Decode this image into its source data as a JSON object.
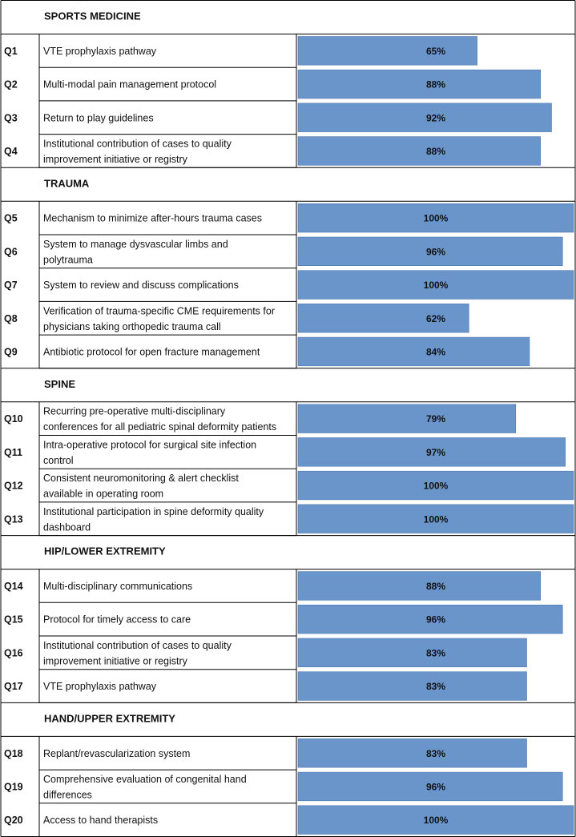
{
  "chart_data": {
    "type": "bar",
    "orientation": "horizontal",
    "xlim": [
      0,
      100
    ],
    "unit": "%",
    "colors": {
      "bar": "#6a95cb",
      "bar_border": "#4d77b0",
      "grid": "#000000"
    },
    "sections": [
      {
        "title": "SPORTS MEDICINE",
        "rows": [
          {
            "id": "Q1",
            "text": [
              "VTE prophylaxis pathway"
            ],
            "value": 65,
            "label": "65%"
          },
          {
            "id": "Q2",
            "text": [
              "Multi-modal pain management protocol"
            ],
            "value": 88,
            "label": "88%"
          },
          {
            "id": "Q3",
            "text": [
              "Return to play guidelines"
            ],
            "value": 92,
            "label": "92%"
          },
          {
            "id": "Q4",
            "text": [
              "Institutional contribution of cases to quality",
              "improvement initiative or registry"
            ],
            "value": 88,
            "label": "88%"
          }
        ]
      },
      {
        "title": "TRAUMA",
        "rows": [
          {
            "id": "Q5",
            "text": [
              "Mechanism to minimize after-hours trauma cases"
            ],
            "value": 100,
            "label": "100%"
          },
          {
            "id": "Q6",
            "text": [
              "System to manage dysvascular limbs and",
              "polytrauma"
            ],
            "value": 96,
            "label": "96%"
          },
          {
            "id": "Q7",
            "text": [
              "System to review and discuss complications"
            ],
            "value": 100,
            "label": "100%"
          },
          {
            "id": "Q8",
            "text": [
              "Verification of trauma-specific CME requirements for",
              "physicians taking orthopedic trauma call"
            ],
            "value": 62,
            "label": "62%"
          },
          {
            "id": "Q9",
            "text": [
              "Antibiotic protocol for open fracture management"
            ],
            "value": 84,
            "label": "84%"
          }
        ]
      },
      {
        "title": "SPINE",
        "rows": [
          {
            "id": "Q10",
            "text": [
              "Recurring pre-operative multi-disciplinary",
              "conferences for all pediatric spinal deformity patients"
            ],
            "value": 79,
            "label": "79%"
          },
          {
            "id": "Q11",
            "text": [
              "Intra-operative protocol for surgical site infection",
              "control"
            ],
            "value": 97,
            "label": "97%"
          },
          {
            "id": "Q12",
            "text": [
              "Consistent neuromonitoring & alert checklist",
              "available in operating room"
            ],
            "value": 100,
            "label": "100%"
          },
          {
            "id": "Q13",
            "text": [
              "Institutional participation in spine deformity quality",
              "dashboard"
            ],
            "value": 100,
            "label": "100%"
          }
        ]
      },
      {
        "title": "HIP/LOWER EXTREMITY",
        "rows": [
          {
            "id": "Q14",
            "text": [
              "Multi-disciplinary communications"
            ],
            "value": 88,
            "label": "88%"
          },
          {
            "id": "Q15",
            "text": [
              "Protocol for timely access to care"
            ],
            "value": 96,
            "label": "96%"
          },
          {
            "id": "Q16",
            "text": [
              "Institutional contribution of cases to quality",
              "improvement initiative or registry"
            ],
            "value": 83,
            "label": "83%"
          },
          {
            "id": "Q17",
            "text": [
              "VTE prophylaxis pathway"
            ],
            "value": 83,
            "label": "83%"
          }
        ]
      },
      {
        "title": "HAND/UPPER EXTREMITY",
        "rows": [
          {
            "id": "Q18",
            "text": [
              "Replant/revascularization system"
            ],
            "value": 83,
            "label": "83%"
          },
          {
            "id": "Q19",
            "text": [
              "Comprehensive evaluation of congenital hand",
              "differences"
            ],
            "value": 96,
            "label": "96%"
          },
          {
            "id": "Q20",
            "text": [
              "Access to hand therapists"
            ],
            "value": 100,
            "label": "100%"
          }
        ]
      }
    ]
  }
}
